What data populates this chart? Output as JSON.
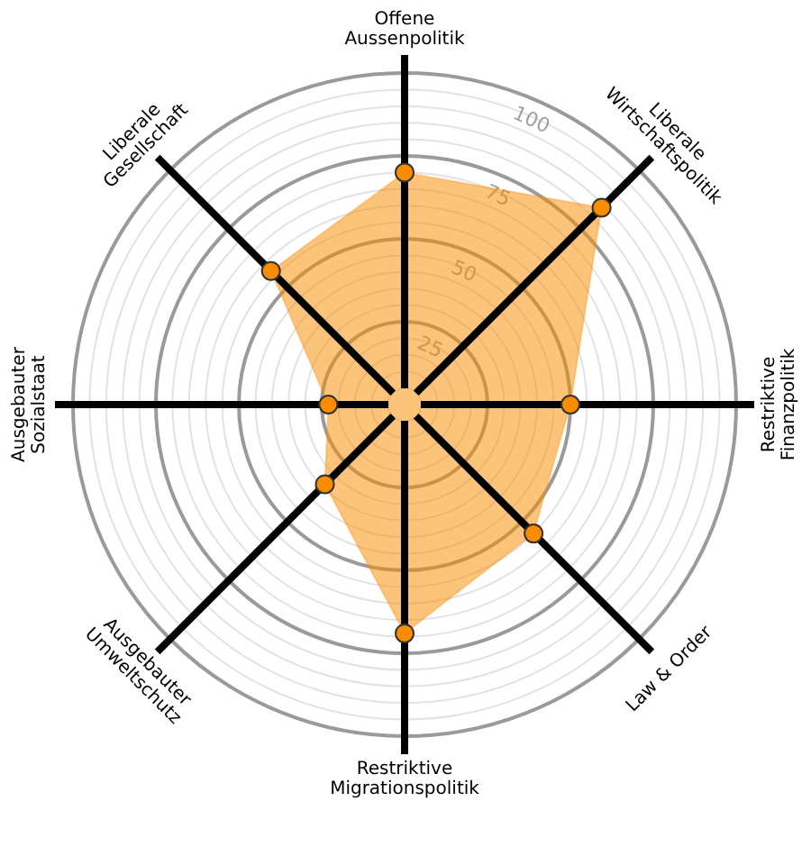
{
  "chart_data": {
    "type": "radar",
    "categories": [
      "Offene\nAussenpolitik",
      "Liberale\nWirtschaftspolitik",
      "Restriktive\nFinanzpolitik",
      "Law & Order",
      "Restriktive\nMigrationspolitik",
      "Ausgebauter\nUmweltschutz",
      "Ausgebauter\nSozialstaat",
      "Liberale\nGesellschaft"
    ],
    "series": [
      {
        "color": "#f98c00",
        "values": [
          70,
          84,
          50,
          55,
          69,
          34,
          23,
          57
        ]
      }
    ],
    "ylim": [
      0,
      100
    ],
    "yticks": [
      25,
      50,
      75,
      100
    ],
    "grid": true,
    "marker": "circle"
  }
}
